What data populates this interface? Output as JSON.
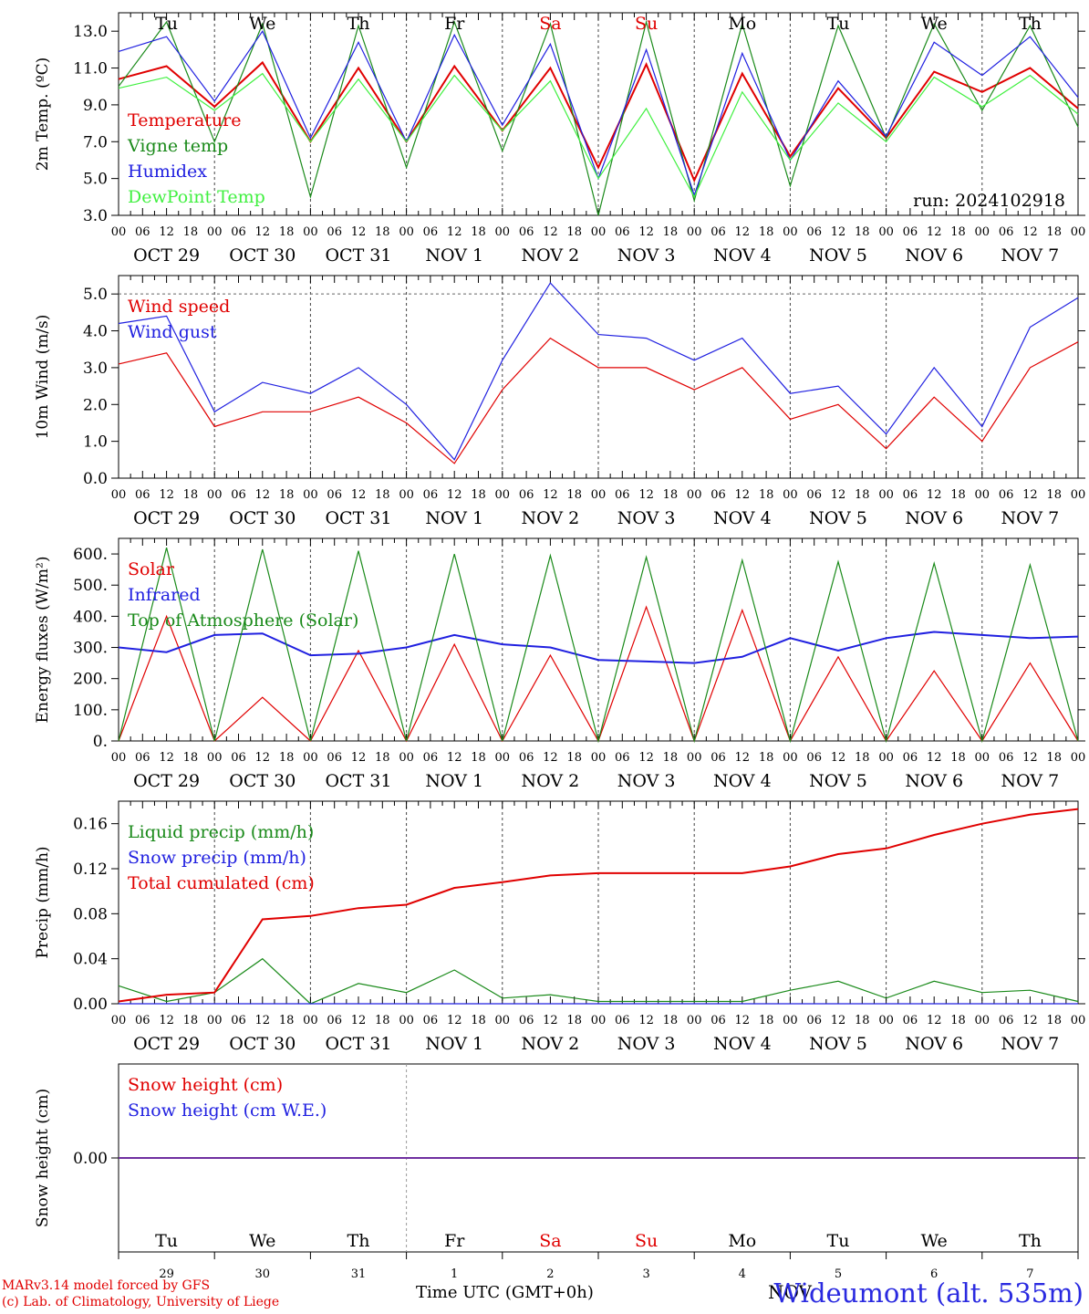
{
  "chart_data": [
    {
      "type": "line",
      "ylabel": "2m Temp. (ºC)",
      "ylim": [
        3.0,
        14.0
      ],
      "yticks": [
        "3.0",
        "5.0",
        "7.0",
        "9.0",
        "11.0",
        "13.0"
      ],
      "annotation": "run: 2024102918",
      "x": [
        "Oct 29 00",
        "Oct 29 12",
        "Oct 30 00",
        "Oct 30 12",
        "Oct 31 00",
        "Oct 31 12",
        "Nov 1 00",
        "Nov 1 12",
        "Nov 2 00",
        "Nov 2 12",
        "Nov 3 00",
        "Nov 3 12",
        "Nov 4 00",
        "Nov 4 12",
        "Nov 5 00",
        "Nov 5 12",
        "Nov 6 00",
        "Nov 6 12",
        "Nov 7 00",
        "Nov 7 12",
        "Nov 8 00"
      ],
      "series": [
        {
          "name": "Temperature",
          "color": "#e00000",
          "values": [
            10.4,
            11.1,
            8.9,
            11.3,
            7.0,
            11.0,
            7.0,
            11.1,
            7.6,
            11.0,
            5.6,
            11.2,
            4.9,
            10.7,
            6.2,
            9.9,
            7.2,
            10.8,
            9.7,
            11.0,
            8.8
          ]
        },
        {
          "name": "Vigne temp",
          "color": "#1a8a1a",
          "values": [
            10.0,
            13.5,
            7.0,
            13.4,
            4.0,
            13.3,
            5.6,
            13.5,
            6.5,
            13.4,
            3.0,
            13.5,
            3.8,
            13.4,
            4.6,
            13.3,
            7.2,
            13.4,
            8.7,
            13.3,
            7.8
          ]
        },
        {
          "name": "Humidex",
          "color": "#2020e0",
          "values": [
            11.9,
            12.7,
            9.2,
            13.0,
            7.2,
            12.4,
            7.0,
            12.8,
            7.9,
            12.3,
            5.0,
            12.0,
            4.1,
            11.8,
            6.0,
            10.3,
            7.3,
            12.4,
            10.6,
            12.7,
            9.4
          ]
        },
        {
          "name": "DewPoint Temp",
          "color": "#40f040",
          "values": [
            9.9,
            10.5,
            8.7,
            10.7,
            7.0,
            10.4,
            7.0,
            10.6,
            7.6,
            10.3,
            5.0,
            8.8,
            4.0,
            9.7,
            6.0,
            9.1,
            7.0,
            10.5,
            8.9,
            10.6,
            8.5
          ]
        }
      ]
    },
    {
      "type": "line",
      "ylabel": "10m Wind (m/s)",
      "ylim": [
        0.0,
        5.5
      ],
      "yticks": [
        "0.0",
        "1.0",
        "2.0",
        "3.0",
        "4.0",
        "5.0"
      ],
      "x": [
        "Oct 29 00",
        "Oct 29 12",
        "Oct 30 00",
        "Oct 30 12",
        "Oct 31 00",
        "Oct 31 12",
        "Nov 1 00",
        "Nov 1 12",
        "Nov 2 00",
        "Nov 2 12",
        "Nov 3 00",
        "Nov 3 12",
        "Nov 4 00",
        "Nov 4 12",
        "Nov 5 00",
        "Nov 5 12",
        "Nov 6 00",
        "Nov 6 12",
        "Nov 7 00",
        "Nov 7 12",
        "Nov 8 00"
      ],
      "series": [
        {
          "name": "Wind speed",
          "color": "#e00000",
          "values": [
            3.1,
            3.4,
            1.4,
            1.8,
            1.8,
            2.2,
            1.5,
            0.4,
            2.4,
            3.8,
            3.0,
            3.0,
            2.4,
            3.0,
            1.6,
            2.0,
            0.8,
            2.2,
            1.0,
            3.0,
            3.7
          ]
        },
        {
          "name": "Wind gust",
          "color": "#2020e0",
          "values": [
            4.2,
            4.4,
            1.8,
            2.6,
            2.3,
            3.0,
            2.0,
            0.5,
            3.2,
            5.3,
            3.9,
            3.8,
            3.2,
            3.8,
            2.3,
            2.5,
            1.2,
            3.0,
            1.4,
            4.1,
            4.9
          ]
        }
      ]
    },
    {
      "type": "line",
      "ylabel": "Energy fluxes (W/m²)",
      "ylim": [
        0,
        650
      ],
      "yticks": [
        "0.",
        "100.",
        "200.",
        "300.",
        "400.",
        "500.",
        "600."
      ],
      "x": [
        "Oct 29 00",
        "Oct 29 12",
        "Oct 30 00",
        "Oct 30 12",
        "Oct 31 00",
        "Oct 31 12",
        "Nov 1 00",
        "Nov 1 12",
        "Nov 2 00",
        "Nov 2 12",
        "Nov 3 00",
        "Nov 3 12",
        "Nov 4 00",
        "Nov 4 12",
        "Nov 5 00",
        "Nov 5 12",
        "Nov 6 00",
        "Nov 6 12",
        "Nov 7 00",
        "Nov 7 12",
        "Nov 8 00"
      ],
      "series": [
        {
          "name": "Solar",
          "color": "#e00000",
          "values": [
            0,
            400,
            0,
            140,
            0,
            290,
            0,
            310,
            0,
            275,
            0,
            430,
            0,
            420,
            0,
            270,
            0,
            225,
            0,
            250,
            0
          ]
        },
        {
          "name": "Infrared",
          "color": "#2020e0",
          "values": [
            300,
            285,
            340,
            345,
            275,
            280,
            300,
            340,
            310,
            300,
            260,
            255,
            250,
            270,
            330,
            290,
            330,
            350,
            340,
            330,
            335
          ]
        },
        {
          "name": "Top of Atmosphere (Solar)",
          "color": "#1a8a1a",
          "values": [
            0,
            620,
            0,
            615,
            0,
            610,
            0,
            600,
            0,
            595,
            0,
            590,
            0,
            580,
            0,
            575,
            0,
            570,
            0,
            565,
            0
          ]
        }
      ]
    },
    {
      "type": "line",
      "ylabel": "Precip (mm/h)",
      "ylim": [
        0.0,
        0.18
      ],
      "yticks": [
        "0.00",
        "0.04",
        "0.08",
        "0.12",
        "0.16"
      ],
      "x": [
        "Oct 29 00",
        "Oct 29 12",
        "Oct 30 00",
        "Oct 30 12",
        "Oct 31 00",
        "Oct 31 12",
        "Nov 1 00",
        "Nov 1 12",
        "Nov 2 00",
        "Nov 2 12",
        "Nov 3 00",
        "Nov 3 12",
        "Nov 4 00",
        "Nov 4 12",
        "Nov 5 00",
        "Nov 5 12",
        "Nov 6 00",
        "Nov 6 12",
        "Nov 7 00",
        "Nov 7 12",
        "Nov 8 00"
      ],
      "series": [
        {
          "name": "Liquid precip (mm/h)",
          "color": "#1a8a1a",
          "values": [
            0.016,
            0.002,
            0.01,
            0.04,
            0.0,
            0.018,
            0.01,
            0.03,
            0.005,
            0.008,
            0.002,
            0.002,
            0.002,
            0.002,
            0.012,
            0.02,
            0.005,
            0.02,
            0.01,
            0.012,
            0.002
          ]
        },
        {
          "name": "Snow precip (mm/h)",
          "color": "#2020e0",
          "values": [
            0,
            0,
            0,
            0,
            0,
            0,
            0,
            0,
            0,
            0,
            0,
            0,
            0,
            0,
            0,
            0,
            0,
            0,
            0,
            0,
            0
          ]
        },
        {
          "name": "Total cumulated (cm)",
          "color": "#e00000",
          "values": [
            0.002,
            0.008,
            0.01,
            0.075,
            0.078,
            0.085,
            0.088,
            0.103,
            0.108,
            0.114,
            0.116,
            0.116,
            0.116,
            0.116,
            0.122,
            0.133,
            0.138,
            0.15,
            0.16,
            0.168,
            0.173
          ]
        }
      ]
    },
    {
      "type": "line",
      "ylabel": "Snow height (cm)",
      "ylim": [
        -0.5,
        0.5
      ],
      "yticks": [
        "0.00"
      ],
      "series": [
        {
          "name": "Snow height (cm)",
          "color": "#e00000",
          "values": [
            0,
            0
          ]
        },
        {
          "name": "Snow height (cm W.E.)",
          "color": "#2020e0",
          "values": [
            0,
            0
          ]
        }
      ]
    }
  ],
  "xaxis": {
    "hour_ticks": [
      "00",
      "06",
      "12",
      "18"
    ],
    "final_tick": "00",
    "date_labels": [
      "OCT 29",
      "OCT 30",
      "OCT 31",
      "NOV  1",
      "NOV  2",
      "NOV  3",
      "NOV  4",
      "NOV  5",
      "NOV  6",
      "NOV  7"
    ],
    "weekdays": [
      "Tu",
      "We",
      "Th",
      "Fr",
      "Sa",
      "Su",
      "Mo",
      "Tu",
      "We",
      "Th"
    ],
    "weekday_colors": [
      "#000000",
      "#000000",
      "#000000",
      "#000000",
      "#e00000",
      "#e00000",
      "#000000",
      "#000000",
      "#000000",
      "#000000"
    ],
    "day_numbers": [
      "29",
      "30",
      "31",
      "1",
      "2",
      "3",
      "4",
      "5",
      "6",
      "7"
    ],
    "bottom_month": "NOV"
  },
  "footer": {
    "model_line": "MARv3.14 model forced by GFS",
    "copyright_line": "(c) Lab. of Climatology, University of Liege",
    "time_label": "Time UTC (GMT+0h)",
    "station": "Wideumont (alt. 535m)"
  },
  "colors": {
    "red": "#e00000",
    "green": "#1a8a1a",
    "blue": "#2020e0",
    "lightgreen": "#40f040",
    "purple": "#7030a0"
  }
}
